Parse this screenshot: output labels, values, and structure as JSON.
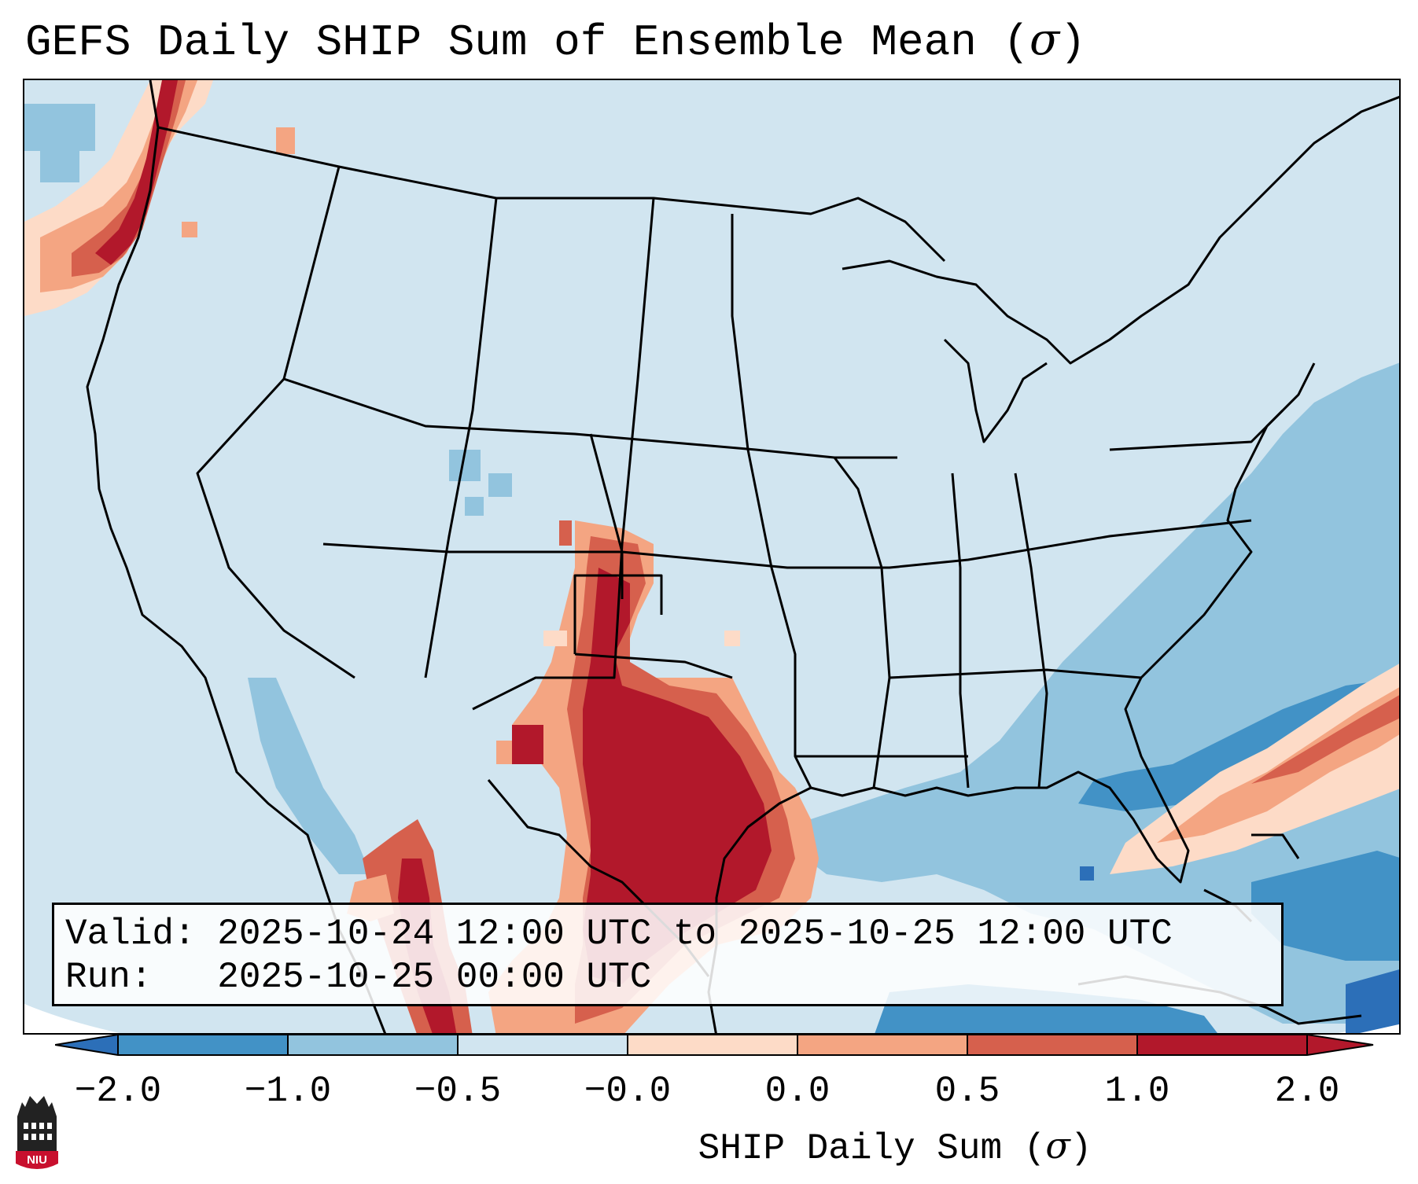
{
  "figure": {
    "title": "GEFS Daily SHIP Sum of Ensemble Mean (σ)",
    "title_text": "GEFS Daily SHIP Sum of Ensemble Mean (",
    "title_symbol": "σ",
    "title_close": ")"
  },
  "info_box": {
    "valid_line": "Valid: 2025-10-24 12:00 UTC to 2025-10-25 12:00 UTC",
    "run_line": "Run:   2025-10-25 00:00 UTC"
  },
  "colorbar": {
    "label_text": "SHIP Daily Sum (",
    "label_symbol": "σ",
    "label_close": ")",
    "ticks": [
      "−2.0",
      "−1.0",
      "−0.5",
      "−0.0",
      "0.0",
      "0.5",
      "1.0",
      "2.0"
    ],
    "colors": {
      "below_min": "#2c6fb8",
      "bin_1": "#4292c6",
      "bin_2": "#92c4de",
      "bin_3": "#d1e5f0",
      "bin_4": "#fddbc7",
      "bin_5": "#f4a582",
      "bin_6": "#d6604d",
      "bin_7": "#b2182b"
    }
  },
  "logo": {
    "text": "NIU",
    "icon": "university-building-icon"
  },
  "map": {
    "background_color": "#d1e5f0",
    "ocean_color": "#92c4de",
    "border_color": "#000000"
  }
}
